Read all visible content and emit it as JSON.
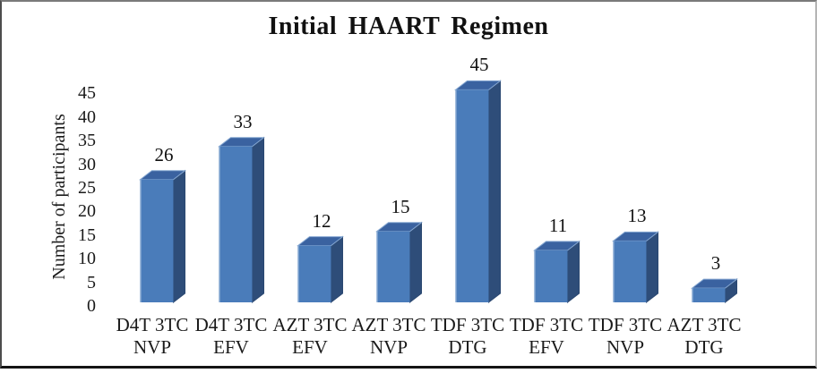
{
  "frame": {
    "background": "#ffffff",
    "border_color_dark": "#4d4d4d",
    "border_color_bottom": "#141414"
  },
  "chart_data": {
    "type": "bar",
    "style": "3d-column",
    "title": "Initial HAART Regimen",
    "xlabel": "",
    "ylabel": "Number of participants",
    "categories": [
      [
        "D4T 3TC",
        "NVP"
      ],
      [
        "D4T 3TC",
        "EFV"
      ],
      [
        "AZT 3TC",
        "EFV"
      ],
      [
        "AZT 3TC",
        "NVP"
      ],
      [
        "TDF 3TC",
        "DTG"
      ],
      [
        "TDF 3TC",
        "EFV"
      ],
      [
        "TDF 3TC",
        "NVP"
      ],
      [
        "AZT 3TC",
        "DTG"
      ]
    ],
    "values": [
      26,
      33,
      12,
      15,
      45,
      11,
      13,
      3
    ],
    "y_ticks": [
      0,
      5,
      10,
      15,
      20,
      25,
      30,
      35,
      40,
      45
    ],
    "ylim": [
      0,
      45
    ],
    "gridlines": false,
    "legend_position": "none",
    "data_labels_shown": true,
    "colors": {
      "bar_front": "#4a7cba",
      "bar_side": "#2e4d79",
      "bar_top": "#3a62a0",
      "bar_highlight": "#86a8d2",
      "side_edge": "#2b4871",
      "text": "#1a1a1a"
    }
  }
}
